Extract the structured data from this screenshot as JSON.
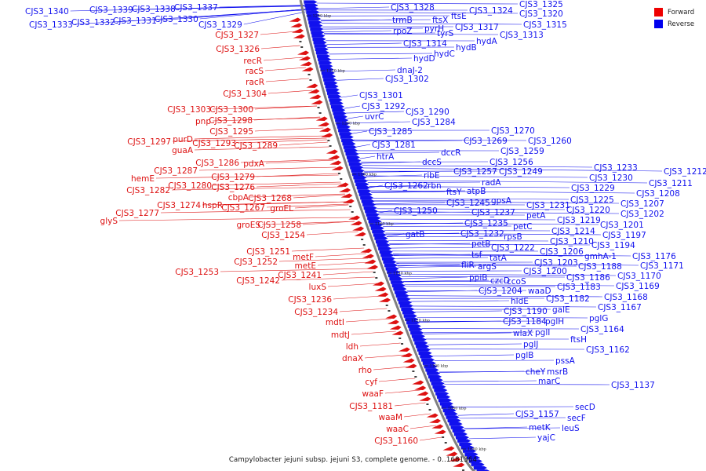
{
  "caption": "Campylobacter jejuni subsp. jejuni S3, complete genome. - 0..1681364",
  "legend": [
    {
      "label": "Forward",
      "color": "#ee0000"
    },
    {
      "label": "Reverse",
      "color": "#0000ee"
    }
  ],
  "colors": {
    "forward": "#dd1111",
    "reverse": "#1111ee",
    "backbone": "#808080"
  },
  "ticks": [
    "1240 kbp",
    "1220 kbp",
    "1200 kbp",
    "1180 kbp",
    "1160 kbp",
    "1140 kbp",
    "1120 kbp",
    "1100 kbp",
    "1080 kbp",
    "1060 kbp"
  ],
  "reverse_labels": [
    "CJS3_1340",
    "CJS3_1339",
    "CJS3_1338",
    "CJS3_1337",
    "CJS3_1333",
    "CJS3_1332",
    "CJS3_1331",
    "CJS3_1330",
    "CJS3_1329",
    "CJS3_1328",
    "CJS3_1325",
    "CJS3_1324",
    "CJS3_1320",
    "trmB",
    "ftsX",
    "ftsE",
    "CJS3_1317",
    "CJS3_1315",
    "rpoZ",
    "pyrH",
    "tyrS",
    "CJS3_1313",
    "CJS3_1314",
    "hydA",
    "hydB",
    "hydC",
    "hydD",
    "dnaJ-2",
    "CJS3_1302",
    "CJS3_1301",
    "CJS3_1292",
    "CJS3_1290",
    "uvrC",
    "CJS3_1284",
    "CJS3_1285",
    "CJS3_1270",
    "CJS3_1269",
    "CJS3_1260",
    "CJS3_1281",
    "CJS3_1259",
    "dccR",
    "htrA",
    "dccS",
    "CJS3_1256",
    "CJS3_1257",
    "CJS3_1249",
    "ribE",
    "radA",
    "CJS3_1262",
    "rbn",
    "ftsY",
    "atpB",
    "CJS3_1245",
    "gpsA",
    "CJS3_1233",
    "CJS3_1212",
    "CJS3_1230",
    "CJS3_1211",
    "CJS3_1229",
    "CJS3_1208",
    "CJS3_1250",
    "CJS3_1237",
    "CJS3_1231",
    "CJS3_1225",
    "CJS3_1207",
    "petA",
    "CJS3_1220",
    "CJS3_1202",
    "CJS3_1235",
    "CJS3_1219",
    "CJS3_1201",
    "gatB",
    "petC",
    "CJS3_1214",
    "CJS3_1197",
    "CJS3_1232",
    "rpsB",
    "CJS3_1210",
    "CJS3_1194",
    "petB",
    "CJS3_1222",
    "CJS3_1206",
    "tsf",
    "tatA",
    "gmhA-1",
    "CJS3_1176",
    "fliR",
    "CJS3_1203",
    "CJS3_1188",
    "CJS3_1171",
    "argS",
    "ccoS",
    "ppiB",
    "CJS3_1200",
    "CJS3_1186",
    "CJS3_1170",
    "czcD",
    "CJS3_1183",
    "CJS3_1204",
    "waaD",
    "CJS3_1169",
    "hldE",
    "CJS3_1182",
    "CJS3_1168",
    "CJS3_1190",
    "galE",
    "CJS3_1167",
    "CJS3_1184",
    "pglH",
    "pglG",
    "wlaX",
    "pglI",
    "CJS3_1164",
    "pglJ",
    "ftsH",
    "pglB",
    "CJS3_1162",
    "pssA",
    "cheY",
    "msrB",
    "marC",
    "CJS3_1137",
    "secD",
    "CJS3_1157",
    "secF",
    "metK",
    "leuS",
    "yajC"
  ],
  "forward_labels": [
    "CJS3_1327",
    "CJS3_1326",
    "recR",
    "racS",
    "racR",
    "CJS3_1304",
    "CJS3_1303",
    "CJS3_1300",
    "pnp",
    "CJS3_1298",
    "CJS3_1295",
    "purD",
    "CJS3_1297",
    "CJS3_1293",
    "guaA",
    "CJS3_1289",
    "CJS3_1286",
    "pdxA",
    "CJS3_1287",
    "hemE",
    "CJS3_1279",
    "CJS3_1280",
    "CJS3_1276",
    "CJS3_1282",
    "cbpA",
    "CJS3_1268",
    "CJS3_1274",
    "hspR",
    "CJS3_1267",
    "groEL",
    "CJS3_1277",
    "glyS",
    "groES",
    "CJS3_1258",
    "CJS3_1254",
    "CJS3_1251",
    "metF",
    "CJS3_1252",
    "metE",
    "CJS3_1253",
    "CJS3_1241",
    "CJS3_1242",
    "luxS",
    "CJS3_1236",
    "CJS3_1234",
    "mdtI",
    "mdtJ",
    "ldh",
    "dnaX",
    "rho",
    "cyf",
    "waaF",
    "CJS3_1181",
    "waaM",
    "waaC",
    "CJS3_1160"
  ]
}
